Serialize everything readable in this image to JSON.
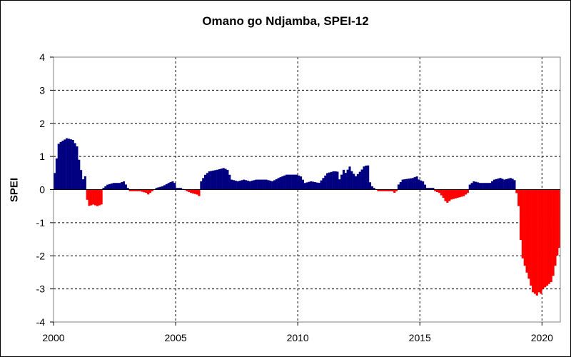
{
  "chart_data": {
    "type": "bar",
    "title": "Omano go Ndjamba, SPEI-12",
    "ylabel": "SPEI",
    "xlabel": "",
    "ylim": [
      -4,
      4
    ],
    "yticks": [
      "4",
      "3",
      "2",
      "1",
      "0",
      "-1",
      "-2",
      "-3",
      "-4"
    ],
    "xlim": [
      2000,
      2020.75
    ],
    "xticks": [
      "2000",
      "2005",
      "2010",
      "2015",
      "2020"
    ],
    "grid": true,
    "colors": {
      "positive": "#000080",
      "negative": "#ff0000"
    },
    "series": [
      {
        "name": "",
        "points": [
          [
            2000.0,
            0.5
          ],
          [
            2000.17,
            1.4
          ],
          [
            2000.5,
            1.55
          ],
          [
            2000.75,
            1.5
          ],
          [
            2000.92,
            1.3
          ],
          [
            2001.0,
            0.9
          ],
          [
            2001.08,
            0.6
          ],
          [
            2001.17,
            0.3
          ],
          [
            2001.25,
            0.4
          ],
          [
            2001.33,
            -0.3
          ],
          [
            2001.42,
            -0.5
          ],
          [
            2001.58,
            -0.45
          ],
          [
            2001.75,
            -0.5
          ],
          [
            2001.92,
            -0.45
          ],
          [
            2002.0,
            0.05
          ],
          [
            2002.17,
            0.15
          ],
          [
            2002.42,
            0.2
          ],
          [
            2002.67,
            0.2
          ],
          [
            2002.83,
            0.25
          ],
          [
            2002.92,
            0.15
          ],
          [
            2003.08,
            -0.05
          ],
          [
            2003.33,
            -0.05
          ],
          [
            2003.5,
            -0.05
          ],
          [
            2003.75,
            -0.1
          ],
          [
            2003.83,
            -0.15
          ],
          [
            2003.92,
            -0.1
          ],
          [
            2004.17,
            0.05
          ],
          [
            2004.42,
            0.1
          ],
          [
            2004.67,
            0.2
          ],
          [
            2004.83,
            0.25
          ],
          [
            2004.92,
            0.2
          ],
          [
            2005.0,
            0.05
          ],
          [
            2005.17,
            0.05
          ],
          [
            2005.42,
            -0.05
          ],
          [
            2005.58,
            -0.1
          ],
          [
            2005.83,
            -0.15
          ],
          [
            2005.92,
            -0.2
          ],
          [
            2006.0,
            0.25
          ],
          [
            2006.17,
            0.45
          ],
          [
            2006.33,
            0.55
          ],
          [
            2006.67,
            0.6
          ],
          [
            2006.92,
            0.65
          ],
          [
            2007.08,
            0.6
          ],
          [
            2007.25,
            0.3
          ],
          [
            2007.5,
            0.25
          ],
          [
            2007.75,
            0.3
          ],
          [
            2008.0,
            0.25
          ],
          [
            2008.25,
            0.3
          ],
          [
            2008.67,
            0.3
          ],
          [
            2008.92,
            0.25
          ],
          [
            2009.17,
            0.35
          ],
          [
            2009.5,
            0.45
          ],
          [
            2009.83,
            0.45
          ],
          [
            2009.92,
            0.45
          ],
          [
            2010.08,
            0.4
          ],
          [
            2010.25,
            0.2
          ],
          [
            2010.5,
            0.25
          ],
          [
            2010.83,
            0.2
          ],
          [
            2011.0,
            0.35
          ],
          [
            2011.17,
            0.5
          ],
          [
            2011.42,
            0.55
          ],
          [
            2011.58,
            0.55
          ],
          [
            2011.67,
            0.3
          ],
          [
            2011.83,
            0.6
          ],
          [
            2011.92,
            0.5
          ],
          [
            2012.08,
            0.7
          ],
          [
            2012.17,
            0.55
          ],
          [
            2012.33,
            0.4
          ],
          [
            2012.58,
            0.6
          ],
          [
            2012.67,
            0.7
          ],
          [
            2012.83,
            0.75
          ],
          [
            2012.92,
            0.2
          ],
          [
            2013.0,
            0.1
          ],
          [
            2013.25,
            -0.05
          ],
          [
            2013.58,
            -0.05
          ],
          [
            2013.75,
            -0.05
          ],
          [
            2013.83,
            -0.05
          ],
          [
            2013.92,
            -0.1
          ],
          [
            2014.0,
            -0.05
          ],
          [
            2014.08,
            0.15
          ],
          [
            2014.25,
            0.3
          ],
          [
            2014.67,
            0.35
          ],
          [
            2014.83,
            0.4
          ],
          [
            2014.92,
            0.3
          ],
          [
            2015.08,
            0.25
          ],
          [
            2015.25,
            0.05
          ],
          [
            2015.5,
            0.05
          ],
          [
            2015.58,
            -0.05
          ],
          [
            2015.75,
            -0.1
          ],
          [
            2015.92,
            -0.25
          ],
          [
            2016.0,
            -0.35
          ],
          [
            2016.08,
            -0.4
          ],
          [
            2016.25,
            -0.3
          ],
          [
            2016.5,
            -0.25
          ],
          [
            2016.75,
            -0.2
          ],
          [
            2016.92,
            -0.1
          ],
          [
            2017.0,
            0.15
          ],
          [
            2017.17,
            0.25
          ],
          [
            2017.42,
            0.2
          ],
          [
            2017.67,
            0.2
          ],
          [
            2017.83,
            0.2
          ],
          [
            2018.0,
            0.3
          ],
          [
            2018.25,
            0.35
          ],
          [
            2018.42,
            0.3
          ],
          [
            2018.67,
            0.35
          ],
          [
            2018.83,
            0.3
          ],
          [
            2019.0,
            -0.5
          ],
          [
            2019.08,
            -1.5
          ],
          [
            2019.17,
            -2.1
          ],
          [
            2019.25,
            -2.3
          ],
          [
            2019.33,
            -2.5
          ],
          [
            2019.42,
            -2.7
          ],
          [
            2019.5,
            -2.9
          ],
          [
            2019.58,
            -3.1
          ],
          [
            2019.67,
            -3.15
          ],
          [
            2019.75,
            -3.2
          ],
          [
            2019.83,
            -3.1
          ],
          [
            2019.92,
            -3.15
          ],
          [
            2020.0,
            -3.0
          ],
          [
            2020.17,
            -2.9
          ],
          [
            2020.25,
            -2.85
          ],
          [
            2020.33,
            -2.8
          ],
          [
            2020.42,
            -2.6
          ],
          [
            2020.5,
            -2.3
          ],
          [
            2020.58,
            -2.0
          ],
          [
            2020.67,
            -1.75
          ],
          [
            2020.72,
            -1.3
          ]
        ]
      }
    ]
  }
}
